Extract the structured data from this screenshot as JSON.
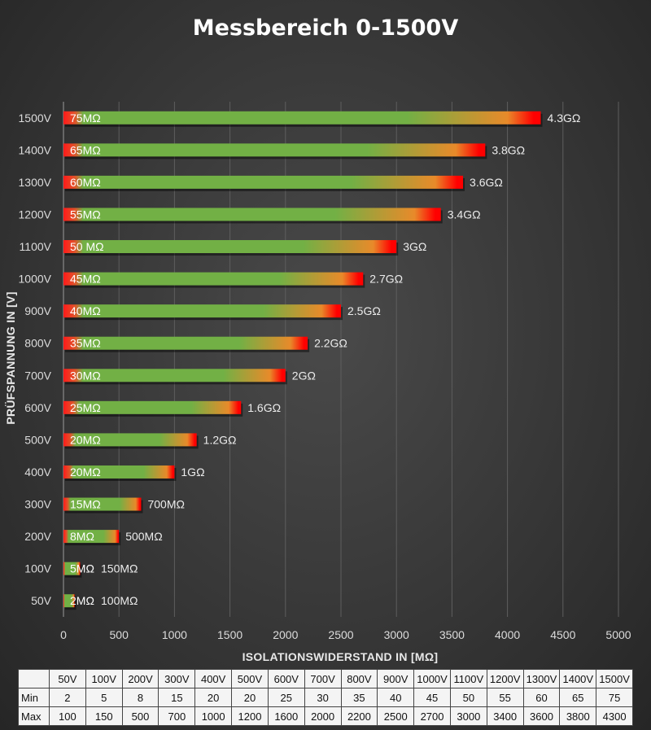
{
  "chart_data": {
    "type": "bar",
    "orientation": "horizontal",
    "title": "Messbereich 0-1500V",
    "xlabel": "ISOLATIONSWIDERSTAND IN [MΩ]",
    "ylabel": "PRÜFSPANNUNG IN [V]",
    "xlim": [
      0,
      5000
    ],
    "xticks": [
      "0",
      "500",
      "1000",
      "1500",
      "2000",
      "2500",
      "3000",
      "3500",
      "4000",
      "4500",
      "5000"
    ],
    "grid": true,
    "categories": [
      "50V",
      "100V",
      "200V",
      "300V",
      "400V",
      "500V",
      "600V",
      "700V",
      "800V",
      "900V",
      "1000V",
      "1100V",
      "1200V",
      "1300V",
      "1400V",
      "1500V"
    ],
    "series": [
      {
        "name": "Min",
        "values": [
          2,
          5,
          8,
          15,
          20,
          20,
          25,
          30,
          35,
          40,
          45,
          50,
          55,
          60,
          65,
          75
        ]
      },
      {
        "name": "Max",
        "values": [
          100,
          150,
          500,
          700,
          1000,
          1200,
          1600,
          2000,
          2200,
          2500,
          2700,
          3000,
          3400,
          3600,
          3800,
          4300
        ]
      }
    ],
    "min_labels": [
      "2MΩ",
      "5MΩ",
      "8MΩ",
      "15MΩ",
      "20MΩ",
      "20MΩ",
      "25MΩ",
      "30MΩ",
      "35MΩ",
      "40MΩ",
      "45MΩ",
      "50 MΩ",
      "55MΩ",
      "60MΩ",
      "65MΩ",
      "75MΩ"
    ],
    "max_labels": [
      "100MΩ",
      "150MΩ",
      "500MΩ",
      "700MΩ",
      "1GΩ",
      "1.2GΩ",
      "1.6GΩ",
      "2GΩ",
      "2.2GΩ",
      "2.5GΩ",
      "2.7GΩ",
      "3GΩ",
      "3.4GΩ",
      "3.6GΩ",
      "3.8GΩ",
      "4.3GΩ"
    ],
    "colors": {
      "bar": "#72b045",
      "min_end": "#ff1a1a",
      "max_end": "#ff0000",
      "mid": "#e88a2a"
    }
  },
  "table": {
    "headers": [
      "",
      "50V",
      "100V",
      "200V",
      "300V",
      "400V",
      "500V",
      "600V",
      "700V",
      "800V",
      "900V",
      "1000V",
      "1100V",
      "1200V",
      "1300V",
      "1400V",
      "1500V"
    ],
    "rows": [
      {
        "label": "Min",
        "values": [
          "2",
          "5",
          "8",
          "15",
          "20",
          "20",
          "25",
          "30",
          "35",
          "40",
          "45",
          "50",
          "55",
          "60",
          "65",
          "75"
        ]
      },
      {
        "label": "Max",
        "values": [
          "100",
          "150",
          "500",
          "700",
          "1000",
          "1200",
          "1600",
          "2000",
          "2200",
          "2500",
          "2700",
          "3000",
          "3400",
          "3600",
          "3800",
          "4300"
        ]
      }
    ]
  }
}
